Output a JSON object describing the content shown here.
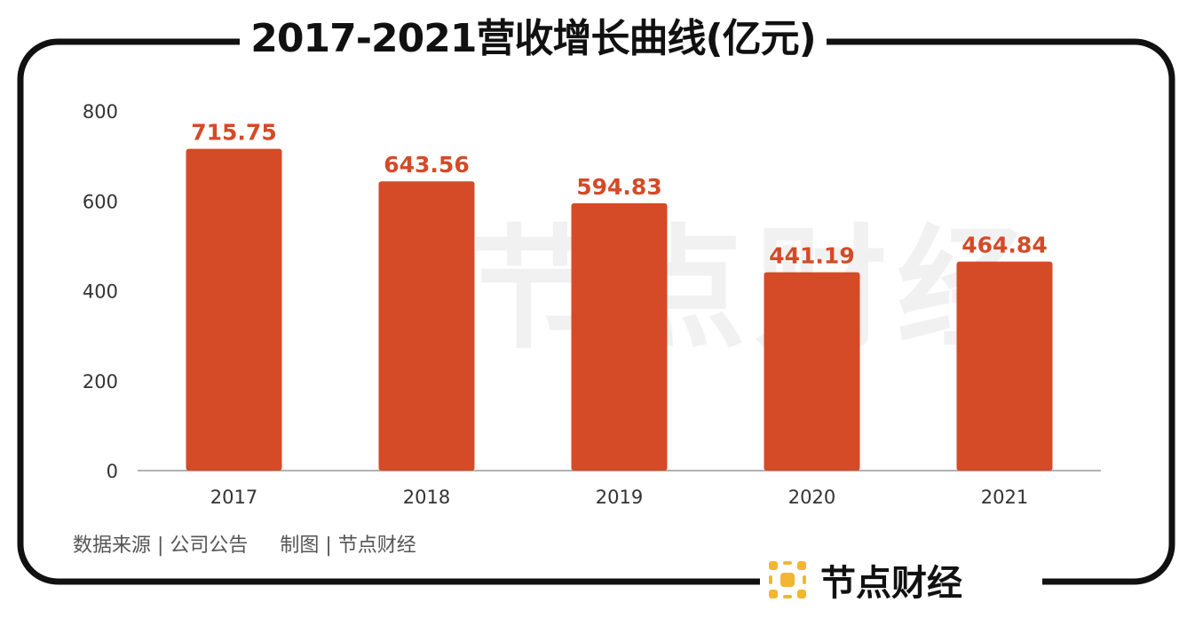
{
  "title": "2017-2021营收增长曲线(亿元)",
  "watermark": "节点财经",
  "footer": {
    "source": "数据来源 | 公司公告",
    "made_by": "制图 | 节点财经"
  },
  "brand": {
    "name": "节点财经",
    "logo_icon": "node-logo-icon",
    "logo_color": "#F2B631"
  },
  "colors": {
    "bar": "#D54A27",
    "value_label": "#D54A27",
    "frame": "#111111",
    "axis_text": "#333333"
  },
  "chart_data": {
    "type": "bar",
    "title": "2017-2021营收增长曲线(亿元)",
    "categories": [
      "2017",
      "2018",
      "2019",
      "2020",
      "2021"
    ],
    "values": [
      715.75,
      643.56,
      594.83,
      441.19,
      464.84
    ],
    "value_labels": [
      "715.75",
      "643.56",
      "594.83",
      "441.19",
      "464.84"
    ],
    "yticks": [
      "0",
      "200",
      "400",
      "600",
      "800"
    ],
    "ylim": [
      0,
      800
    ],
    "xlabel": "",
    "ylabel": "",
    "grid": false,
    "legend": "none"
  }
}
